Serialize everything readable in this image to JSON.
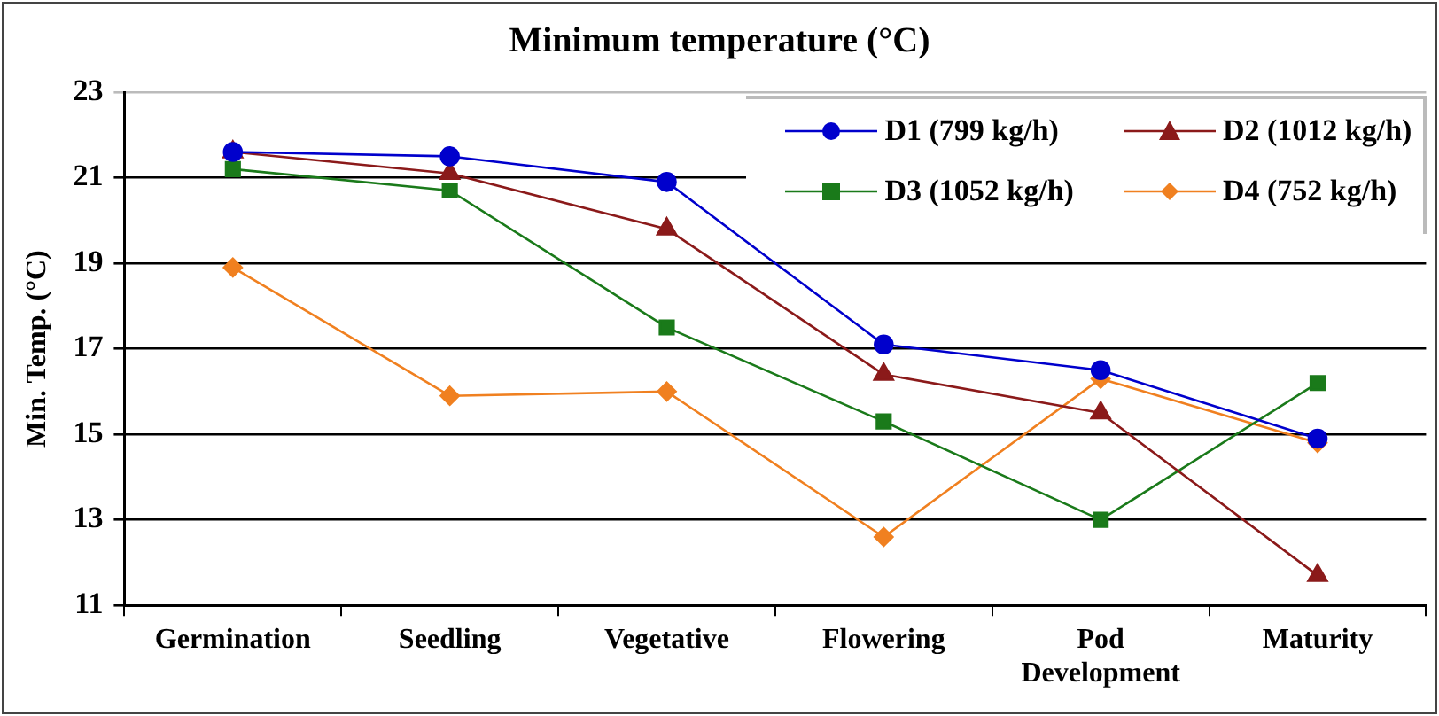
{
  "chart_data": {
    "type": "line",
    "title": "Minimum temperature (°C)",
    "ylabel": "Min. Temp. (°C)",
    "categories": [
      "Germination",
      "Seedling",
      "Vegetative",
      "Flowering",
      "Pod Development",
      "Maturity"
    ],
    "series": [
      {
        "name": "D1 (799 kg/h)",
        "color": "#0000cc",
        "marker": "circle",
        "values": [
          21.6,
          21.5,
          20.9,
          17.1,
          16.5,
          14.9
        ]
      },
      {
        "name": "D2 (1012 kg/h)",
        "color": "#8b1a1a",
        "marker": "triangle",
        "values": [
          21.6,
          21.1,
          19.8,
          16.4,
          15.5,
          11.7
        ]
      },
      {
        "name": "D3 (1052 kg/h)",
        "color": "#1a7a1a",
        "marker": "square",
        "values": [
          21.2,
          20.7,
          17.5,
          15.3,
          13.0,
          16.2
        ]
      },
      {
        "name": "D4 (752 kg/h)",
        "color": "#f08020",
        "marker": "diamond",
        "values": [
          18.9,
          15.9,
          16.0,
          12.6,
          16.3,
          14.8
        ]
      }
    ],
    "ylim": [
      11,
      23
    ],
    "yticks": [
      11,
      13,
      15,
      17,
      19,
      21,
      23
    ],
    "grid": "y",
    "legend": "top right"
  }
}
